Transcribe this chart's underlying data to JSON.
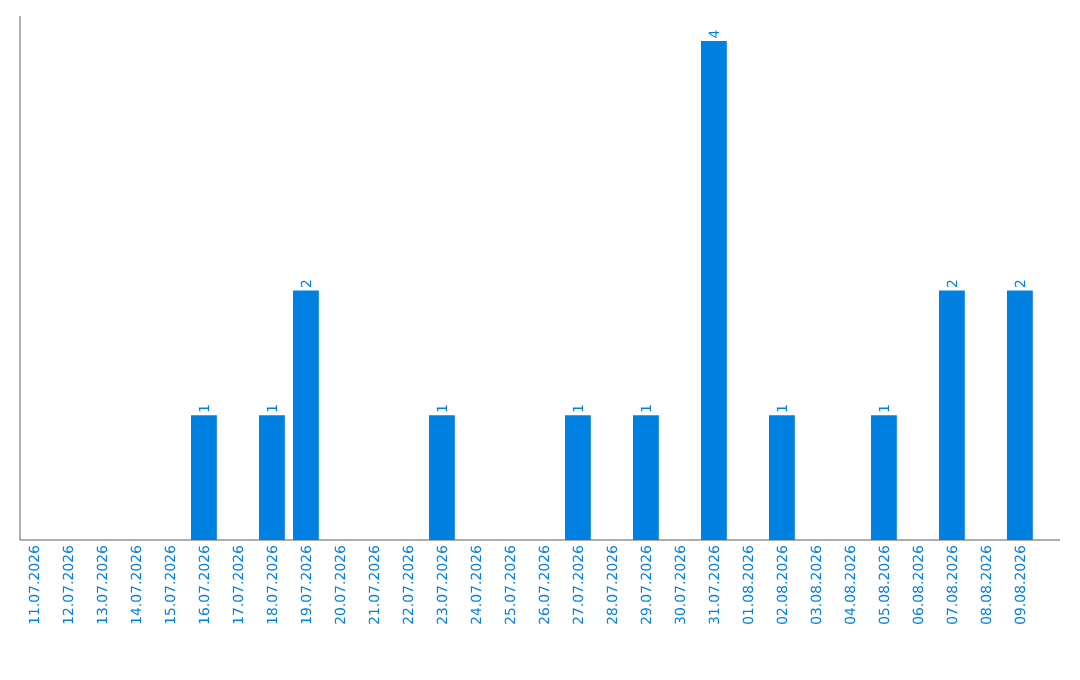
{
  "chart_data": {
    "type": "bar",
    "categories": [
      "11.07.2026",
      "12.07.2026",
      "13.07.2026",
      "14.07.2026",
      "15.07.2026",
      "16.07.2026",
      "17.07.2026",
      "18.07.2026",
      "19.07.2026",
      "20.07.2026",
      "21.07.2026",
      "22.07.2026",
      "23.07.2026",
      "24.07.2026",
      "25.07.2026",
      "26.07.2026",
      "27.07.2026",
      "28.07.2026",
      "29.07.2026",
      "30.07.2026",
      "31.07.2026",
      "01.08.2026",
      "02.08.2026",
      "03.08.2026",
      "04.08.2026",
      "05.08.2026",
      "06.08.2026",
      "07.08.2026",
      "08.08.2026",
      "09.08.2026"
    ],
    "values": [
      0,
      0,
      0,
      0,
      0,
      1,
      0,
      1,
      2,
      0,
      0,
      0,
      1,
      0,
      0,
      0,
      1,
      0,
      1,
      0,
      4,
      0,
      1,
      0,
      0,
      1,
      0,
      2,
      0,
      2
    ],
    "value_labels": [
      null,
      null,
      null,
      null,
      null,
      "1",
      null,
      "1",
      "2",
      null,
      null,
      null,
      "1",
      null,
      null,
      null,
      "1",
      null,
      "1",
      null,
      "4",
      null,
      "1",
      null,
      null,
      "1",
      null,
      "2",
      null,
      "2"
    ],
    "color": "#0080e0",
    "ylim": [
      0,
      4.2
    ]
  }
}
